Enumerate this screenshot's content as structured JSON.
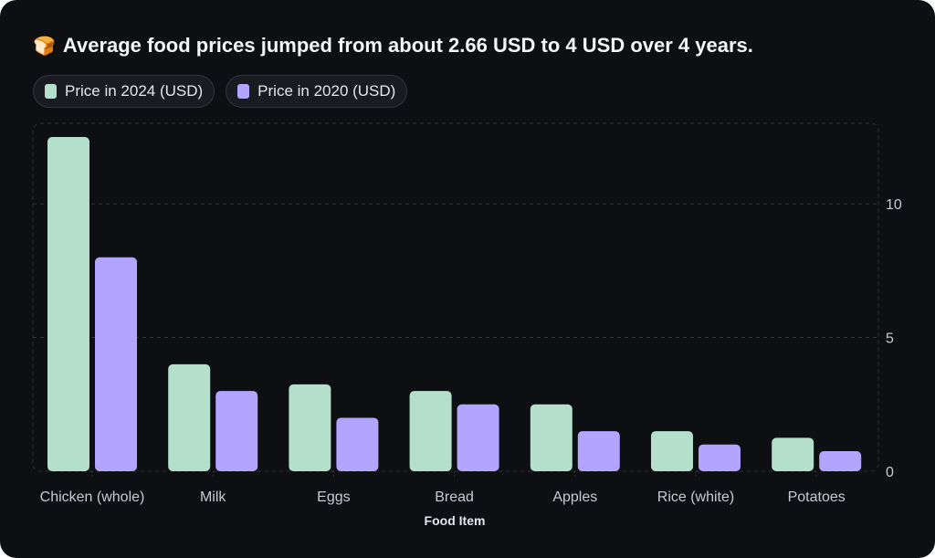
{
  "header": {
    "emoji": "🍞",
    "title": "Average food prices jumped from about 2.66 USD to 4 USD over 4 years."
  },
  "colors": {
    "background": "#0e0f13",
    "series_2024": "#b3dfcb",
    "series_2020": "#b3a4ff",
    "grid": "#2f3138",
    "text": "#c9cbd3"
  },
  "legend": [
    {
      "label": "Price in 2024 (USD)",
      "color": "#b3dfcb"
    },
    {
      "label": "Price in 2020 (USD)",
      "color": "#b3a4ff"
    }
  ],
  "chart_data": {
    "type": "bar",
    "title": "Average food prices jumped from about 2.66 USD to 4 USD over 4 years.",
    "xlabel": "Food Item",
    "ylabel": "",
    "categories": [
      "Chicken (whole)",
      "Milk",
      "Eggs",
      "Bread",
      "Apples",
      "Rice (white)",
      "Potatoes"
    ],
    "series": [
      {
        "name": "Price in 2024 (USD)",
        "values": [
          12.5,
          4.0,
          3.25,
          3.0,
          2.5,
          1.5,
          1.25
        ]
      },
      {
        "name": "Price in 2020 (USD)",
        "values": [
          8.0,
          3.0,
          2.0,
          2.5,
          1.5,
          1.0,
          0.75
        ]
      }
    ],
    "ylim": [
      0,
      12.5
    ],
    "yticks": [
      "0",
      "5",
      "10"
    ],
    "grid": true,
    "yaxis_position": "right",
    "legend_position": "top-left"
  }
}
